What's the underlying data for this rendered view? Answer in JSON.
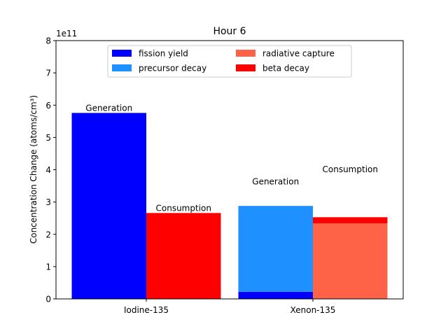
{
  "chart_data": {
    "type": "bar",
    "title": "Hour 6",
    "ylabel": "Concentration Change (atoms/cm³)",
    "xlabel": "",
    "y_scale_label": "1e11",
    "ylim": [
      0,
      8
    ],
    "yticks": [
      "0",
      "1",
      "2",
      "3",
      "4",
      "5",
      "6",
      "7",
      "8"
    ],
    "categories": [
      "Iodine-135",
      "Xenon-135"
    ],
    "legend": {
      "placement": "top-center",
      "entries": [
        {
          "name": "fission yield",
          "color": "#0000ff"
        },
        {
          "name": "precursor decay",
          "color": "#1e90ff"
        },
        {
          "name": "radiative capture",
          "color": "#ff6347"
        },
        {
          "name": "beta decay",
          "color": "#ff0000"
        }
      ]
    },
    "groups": [
      {
        "category": "Iodine-135",
        "bars": [
          {
            "label": "Generation",
            "segments": [
              {
                "series": "fission yield",
                "value": 5.76,
                "color": "#0000ff"
              }
            ]
          },
          {
            "label": "Consumption",
            "segments": [
              {
                "series": "beta decay",
                "value": 2.66,
                "color": "#ff0000"
              }
            ]
          }
        ]
      },
      {
        "category": "Xenon-135",
        "bars": [
          {
            "label": "Generation",
            "segments": [
              {
                "series": "fission yield",
                "value": 0.22,
                "color": "#0000ff"
              },
              {
                "series": "precursor decay",
                "value": 2.66,
                "color": "#1e90ff"
              }
            ]
          },
          {
            "label": "Consumption",
            "segments": [
              {
                "series": "radiative capture",
                "value": 2.34,
                "color": "#ff6347"
              },
              {
                "series": "beta decay",
                "value": 0.19,
                "color": "#ff0000"
              }
            ]
          }
        ]
      }
    ]
  }
}
